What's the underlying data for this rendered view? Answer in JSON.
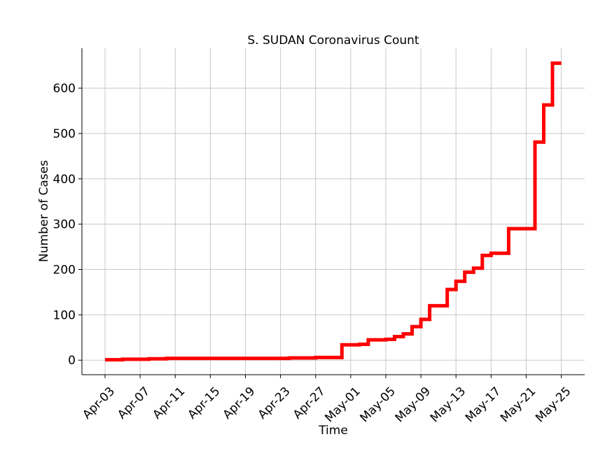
{
  "chart_data": {
    "type": "line",
    "title": "S. SUDAN Coronavirus Count",
    "xlabel": "Time",
    "ylabel": "Number of Cases",
    "x_tick_labels": [
      "Apr-03",
      "Apr-07",
      "Apr-11",
      "Apr-15",
      "Apr-19",
      "Apr-23",
      "Apr-27",
      "May-01",
      "May-05",
      "May-09",
      "May-13",
      "May-17",
      "May-21",
      "May-25"
    ],
    "y_ticks": [
      0,
      100,
      200,
      300,
      400,
      500,
      600
    ],
    "xlim": [
      "2020-04-03",
      "2020-05-25"
    ],
    "ylim": [
      -32,
      688
    ],
    "grid": true,
    "line_color": "#ff0000",
    "series": [
      {
        "x": [
          "2020-04-03",
          "2020-04-05",
          "2020-04-07",
          "2020-04-08",
          "2020-04-09",
          "2020-04-10",
          "2020-04-11",
          "2020-04-23",
          "2020-04-24",
          "2020-04-26",
          "2020-04-27",
          "2020-04-29",
          "2020-04-30",
          "2020-05-02",
          "2020-05-03",
          "2020-05-05",
          "2020-05-06",
          "2020-05-07",
          "2020-05-08",
          "2020-05-09",
          "2020-05-10",
          "2020-05-11",
          "2020-05-12",
          "2020-05-13",
          "2020-05-14",
          "2020-05-15",
          "2020-05-16",
          "2020-05-17",
          "2020-05-18",
          "2020-05-19",
          "2020-05-20",
          "2020-05-21",
          "2020-05-22",
          "2020-05-23",
          "2020-05-24",
          "2020-05-25"
        ],
        "y": [
          1,
          2,
          2,
          3,
          3,
          4,
          4,
          4,
          5,
          5,
          6,
          6,
          34,
          35,
          45,
          46,
          52,
          58,
          74,
          90,
          120,
          120,
          156,
          174,
          194,
          203,
          231,
          236,
          236,
          290,
          290,
          290,
          481,
          563,
          655,
          655
        ]
      }
    ]
  }
}
